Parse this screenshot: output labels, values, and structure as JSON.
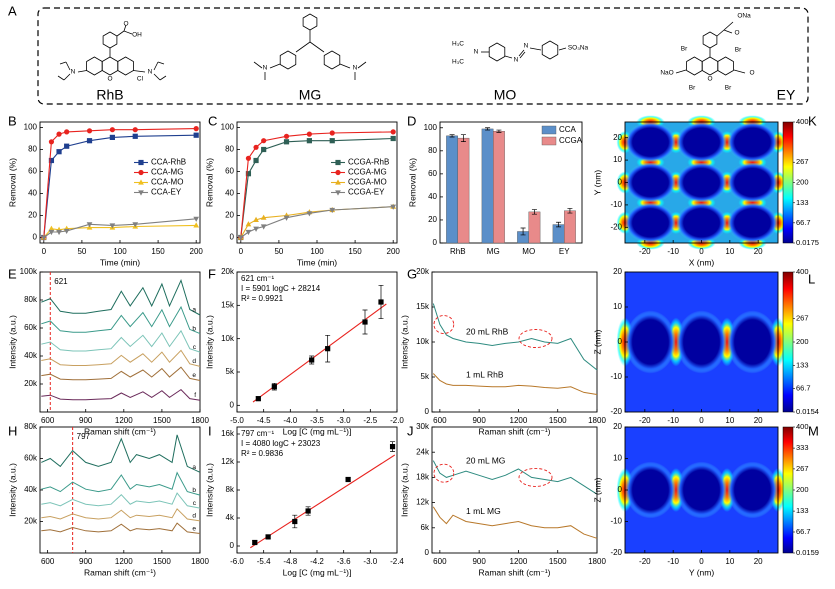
{
  "figure": {
    "panel": "A",
    "structures": [
      {
        "name": "RhB",
        "atoms": [
          "OH",
          "O",
          "N",
          "O",
          "Cl",
          "N"
        ]
      },
      {
        "name": "MG",
        "atoms": [
          "N",
          "N"
        ]
      },
      {
        "name": "MO",
        "atoms": [
          "H₃C",
          "N",
          "H₃C",
          "N",
          "N",
          "SO₃Na"
        ]
      },
      {
        "name": "EY",
        "atoms": [
          "ONa",
          "O",
          "Br",
          "Br",
          "NaO",
          "O",
          "Br",
          "O",
          "Br"
        ]
      }
    ]
  },
  "chart_data": [
    {
      "panel": "B",
      "type": "line",
      "xlabel": "Time (min)",
      "ylabel": "Removal (%)",
      "xlim": [
        -5,
        205
      ],
      "xticks": [
        0,
        50,
        100,
        150,
        200
      ],
      "ylim": [
        -5,
        105
      ],
      "yticks": [
        0,
        20,
        40,
        60,
        80,
        100
      ],
      "legend": "center right",
      "x": [
        0,
        10,
        20,
        30,
        60,
        90,
        120,
        200
      ],
      "series": [
        {
          "name": "CCA-RhB",
          "color": "#1f3f8f",
          "marker": "s",
          "values": [
            0,
            70,
            78,
            83,
            88,
            91,
            92,
            93
          ]
        },
        {
          "name": "CCA-MG",
          "color": "#e8231f",
          "marker": "o",
          "values": [
            0,
            87,
            94,
            96,
            97,
            98,
            98,
            99
          ]
        },
        {
          "name": "CCA-MO",
          "color": "#f0c020",
          "marker": "^",
          "values": [
            0,
            8,
            7,
            8,
            9,
            9,
            10,
            11
          ]
        },
        {
          "name": "CCA-EY",
          "color": "#808080",
          "marker": "v",
          "values": [
            0,
            5,
            5,
            6,
            12,
            11,
            12,
            17
          ]
        }
      ]
    },
    {
      "panel": "C",
      "type": "line",
      "xlabel": "Time (min)",
      "ylabel": "Removal (%)",
      "xlim": [
        -5,
        205
      ],
      "xticks": [
        0,
        50,
        100,
        150,
        200
      ],
      "ylim": [
        -5,
        105
      ],
      "yticks": [
        0,
        20,
        40,
        60,
        80,
        100
      ],
      "legend": "center right",
      "x": [
        0,
        10,
        20,
        30,
        60,
        90,
        120,
        200
      ],
      "series": [
        {
          "name": "CCGA-RhB",
          "color": "#2e5f55",
          "marker": "s",
          "values": [
            0,
            58,
            70,
            80,
            87,
            88,
            88,
            90
          ]
        },
        {
          "name": "CCGA-MG",
          "color": "#e8231f",
          "marker": "o",
          "values": [
            0,
            72,
            82,
            88,
            92,
            94,
            95,
            96
          ]
        },
        {
          "name": "CCGA-MO",
          "color": "#e8b020",
          "marker": "^",
          "values": [
            0,
            12,
            16,
            18,
            20,
            23,
            25,
            28
          ]
        },
        {
          "name": "CCGA-EY",
          "color": "#808080",
          "marker": "v",
          "values": [
            0,
            5,
            8,
            10,
            18,
            22,
            25,
            28
          ]
        }
      ]
    },
    {
      "panel": "D",
      "type": "bar",
      "ylabel": "Removal (%)",
      "ylim": [
        0,
        105
      ],
      "yticks": [
        0,
        20,
        40,
        60,
        80,
        100
      ],
      "legend": "upper right",
      "categories": [
        "RhB",
        "MG",
        "MO",
        "EY"
      ],
      "series": [
        {
          "name": "CCA",
          "color": "#5b8fc9",
          "values": [
            93,
            99,
            10,
            16
          ],
          "errors": [
            1,
            1,
            3,
            2
          ]
        },
        {
          "name": "CCGA",
          "color": "#e88a8a",
          "values": [
            91,
            97,
            27,
            28
          ],
          "errors": [
            3,
            1,
            2,
            2
          ]
        }
      ]
    },
    {
      "panel": "E",
      "type": "spectrum",
      "xlabel": "Raman shift (cm⁻¹)",
      "ylabel": "Intensity (a.u.)",
      "xlim": [
        540,
        1800
      ],
      "xticks": [
        600,
        900,
        1200,
        1500,
        1800
      ],
      "ylim": [
        0,
        100000
      ],
      "yticks": [
        {
          "value": 20000,
          "label": "20k"
        },
        {
          "value": 40000,
          "label": "40k"
        },
        {
          "value": 60000,
          "label": "60k"
        },
        {
          "value": 80000,
          "label": "80k"
        },
        {
          "value": 100000,
          "label": "100k"
        }
      ],
      "vline": 621,
      "x": [
        550,
        621,
        700,
        800,
        900,
        1000,
        1100,
        1180,
        1250,
        1350,
        1420,
        1500,
        1560,
        1650,
        1720,
        1800
      ],
      "series": [
        {
          "name": "a",
          "color": "#1f6e5e",
          "values": [
            78400,
            81000,
            71900,
            70600,
            70600,
            71900,
            73200,
            86200,
            75800,
            88800,
            75800,
            91400,
            75800,
            94000,
            73200,
            69300
          ]
        },
        {
          "name": "b",
          "color": "#3a9a8a",
          "values": [
            63000,
            65000,
            58000,
            57000,
            57000,
            58000,
            59000,
            69000,
            61000,
            71000,
            61000,
            73000,
            61000,
            75000,
            59000,
            56000
          ]
        },
        {
          "name": "c",
          "color": "#7cc4b8",
          "values": [
            48400,
            50000,
            44400,
            43600,
            43600,
            44400,
            45200,
            53200,
            46800,
            54800,
            46800,
            56400,
            46800,
            58000,
            45200,
            42800
          ]
        },
        {
          "name": "d",
          "color": "#c8a060",
          "values": [
            36800,
            38000,
            33800,
            33200,
            33200,
            33800,
            34400,
            40400,
            35600,
            41600,
            35600,
            42800,
            35600,
            44000,
            34400,
            32600
          ]
        },
        {
          "name": "e",
          "color": "#a0703a",
          "values": [
            26000,
            27000,
            23500,
            23000,
            23000,
            23500,
            24000,
            29000,
            25000,
            30000,
            25000,
            31000,
            25000,
            32000,
            24000,
            22500
          ]
        },
        {
          "name": "f",
          "color": "#6a2a5a",
          "values": [
            11200,
            12000,
            9200,
            8800,
            8800,
            9200,
            9600,
            13600,
            10400,
            14400,
            10400,
            15200,
            10400,
            16000,
            9600,
            8400
          ]
        }
      ]
    },
    {
      "panel": "F",
      "type": "scatter",
      "xlabel": "Log [C (mg mL⁻¹)]",
      "ylabel": "Intensity (a.u.)",
      "xlim": [
        -5,
        -2
      ],
      "xticks": [
        {
          "value": -5,
          "label": "-5.0"
        },
        {
          "value": -4.5,
          "label": "-4.5"
        },
        {
          "value": -4,
          "label": "-4.0"
        },
        {
          "value": -3.5,
          "label": "-3.5"
        },
        {
          "value": -3,
          "label": "-3.0"
        },
        {
          "value": -2.5,
          "label": "-2.5"
        },
        {
          "value": -2,
          "label": "-2.0"
        }
      ],
      "ylim": [
        -1000,
        20000
      ],
      "yticks": [
        0,
        {
          "value": 5000,
          "label": "5k"
        },
        {
          "value": 10000,
          "label": "10k"
        },
        {
          "value": 15000,
          "label": "15k"
        },
        {
          "value": 20000,
          "label": "20k"
        }
      ],
      "annotations": [
        "621 cm⁻¹",
        "I = 5901 logC + 28214",
        "R² = 0.9921"
      ],
      "x": [
        -4.6,
        -4.3,
        -3.6,
        -3.3,
        -2.6,
        -2.3
      ],
      "values": [
        1000,
        2800,
        6800,
        8500,
        12500,
        15500
      ],
      "errors": [
        300,
        500,
        600,
        2000,
        1800,
        2500
      ],
      "color": "#000000",
      "fit": {
        "color": "#e8231f",
        "x": [
          -4.7,
          -2.2
        ],
        "y": [
          500,
          15200
        ]
      }
    },
    {
      "panel": "G",
      "type": "spectrum",
      "xlabel": "Raman shift (cm⁻¹)",
      "ylabel": "Intensity (a.u.)",
      "xlim": [
        540,
        1800
      ],
      "xticks": [
        600,
        900,
        1200,
        1500,
        1800
      ],
      "ylim": [
        0,
        20000
      ],
      "yticks": [
        0,
        {
          "value": 5000,
          "label": "5k"
        },
        {
          "value": 10000,
          "label": "10k"
        },
        {
          "value": 15000,
          "label": "15k"
        },
        {
          "value": 20000,
          "label": "20k"
        }
      ],
      "x": [
        550,
        600,
        650,
        700,
        800,
        900,
        1000,
        1100,
        1200,
        1300,
        1400,
        1500,
        1600,
        1700,
        1800
      ],
      "series": [
        {
          "name": "20 mL RhB",
          "color": "#2e8b80",
          "values": [
            15500,
            12500,
            11000,
            10500,
            10000,
            9800,
            9500,
            9800,
            10000,
            10500,
            10000,
            9800,
            10500,
            7500,
            6000
          ]
        },
        {
          "name": "1 mL RhB",
          "color": "#b8782a",
          "values": [
            5500,
            4500,
            4000,
            3800,
            3800,
            3700,
            3600,
            3600,
            3800,
            3700,
            3500,
            3400,
            3600,
            2800,
            2500
          ]
        }
      ]
    },
    {
      "panel": "H",
      "type": "spectrum",
      "xlabel": "Raman shift (cm⁻¹)",
      "ylabel": "Intensity (a.u.)",
      "xlim": [
        540,
        1800
      ],
      "xticks": [
        600,
        900,
        1200,
        1500,
        1800
      ],
      "ylim": [
        0,
        80000
      ],
      "yticks": [
        {
          "value": 20000,
          "label": "20k"
        },
        {
          "value": 40000,
          "label": "40k"
        },
        {
          "value": 60000,
          "label": "60k"
        },
        {
          "value": 80000,
          "label": "80k"
        }
      ],
      "vline": 797,
      "x": [
        550,
        620,
        700,
        797,
        900,
        1000,
        1100,
        1180,
        1250,
        1300,
        1400,
        1480,
        1580,
        1620,
        1700,
        1800
      ],
      "series": [
        {
          "name": "a",
          "color": "#1f6e5e",
          "values": [
            57500,
            60000,
            55000,
            65000,
            57500,
            55000,
            57500,
            72500,
            57500,
            62500,
            60000,
            62500,
            57500,
            75000,
            55000,
            51250
          ]
        },
        {
          "name": "b",
          "color": "#3a9a8a",
          "values": [
            40500,
            42000,
            39000,
            45000,
            40500,
            39000,
            40500,
            49500,
            40500,
            43500,
            42000,
            43500,
            40500,
            51000,
            39000,
            36750
          ]
        },
        {
          "name": "c",
          "color": "#7cc4b8",
          "values": [
            31000,
            32000,
            30000,
            34000,
            31000,
            30000,
            31000,
            37000,
            31000,
            33000,
            32000,
            33000,
            31000,
            38000,
            30000,
            28500
          ]
        },
        {
          "name": "d",
          "color": "#c8a060",
          "values": [
            22400,
            23200,
            21600,
            24800,
            22400,
            21600,
            22400,
            27200,
            22400,
            24000,
            23200,
            24000,
            22400,
            28000,
            21600,
            20400
          ]
        },
        {
          "name": "e",
          "color": "#a0703a",
          "values": [
            14100,
            14800,
            13400,
            16200,
            14100,
            13400,
            14100,
            18300,
            14100,
            15500,
            14800,
            15500,
            14100,
            19000,
            13400,
            12350
          ]
        }
      ]
    },
    {
      "panel": "I",
      "type": "scatter",
      "xlabel": "Log [C (mg mL⁻¹)]",
      "ylabel": "Intensity (a.u.)",
      "xlim": [
        -6,
        -2.4
      ],
      "xticks": [
        {
          "value": -6,
          "label": "-6.0"
        },
        {
          "value": -5.4,
          "label": "-5.4"
        },
        {
          "value": -4.8,
          "label": "-4.8"
        },
        {
          "value": -4.2,
          "label": "-4.2"
        },
        {
          "value": -3.6,
          "label": "-3.6"
        },
        {
          "value": -3,
          "label": "-3.0"
        },
        {
          "value": -2.4,
          "label": "-2.4"
        }
      ],
      "ylim": [
        -1000,
        17000
      ],
      "yticks": [
        0,
        {
          "value": 4000,
          "label": "4k"
        },
        {
          "value": 8000,
          "label": "8k"
        },
        {
          "value": 12000,
          "label": "12k"
        },
        {
          "value": 16000,
          "label": "16k"
        }
      ],
      "annotations": [
        "797 cm⁻¹",
        "I = 4080 logC + 23023",
        "R² = 0.9836"
      ],
      "x": [
        -5.6,
        -5.3,
        -4.7,
        -4.4,
        -3.5,
        -2.5
      ],
      "values": [
        500,
        1300,
        3500,
        5000,
        9500,
        14200
      ],
      "errors": [
        300,
        200,
        900,
        600,
        300,
        700
      ],
      "color": "#000000",
      "fit": {
        "color": "#e8231f",
        "x": [
          -5.7,
          -2.45
        ],
        "y": [
          -250,
          13000
        ]
      }
    },
    {
      "panel": "J",
      "type": "spectrum",
      "xlabel": "Raman shift (cm⁻¹)",
      "ylabel": "Intensity (a.u.)",
      "xlim": [
        540,
        1800
      ],
      "xticks": [
        600,
        900,
        1200,
        1500,
        1800
      ],
      "ylim": [
        0,
        30000
      ],
      "yticks": [
        0,
        {
          "value": 6000,
          "label": "6k"
        },
        {
          "value": 12000,
          "label": "12k"
        },
        {
          "value": 18000,
          "label": "18k"
        },
        {
          "value": 24000,
          "label": "24k"
        },
        {
          "value": 30000,
          "label": "30k"
        }
      ],
      "x": [
        550,
        600,
        650,
        700,
        800,
        900,
        1000,
        1100,
        1200,
        1300,
        1400,
        1500,
        1600,
        1700,
        1800
      ],
      "series": [
        {
          "name": "20 mL MG",
          "color": "#2e8b80",
          "values": [
            22000,
            19000,
            18000,
            18500,
            19500,
            18500,
            17500,
            18500,
            20000,
            18000,
            17500,
            17000,
            18000,
            16000,
            14000
          ]
        },
        {
          "name": "1 mL MG",
          "color": "#b8782a",
          "values": [
            11000,
            8500,
            7000,
            9000,
            7500,
            7000,
            6500,
            7000,
            7500,
            6500,
            6000,
            6000,
            6500,
            4500,
            3500
          ]
        }
      ]
    },
    {
      "panel": "K",
      "type": "heatmap",
      "xlabel": "X (nm)",
      "ylabel": "Y (nm)",
      "xlim": [
        -27,
        27
      ],
      "xticks": [
        -20,
        -10,
        0,
        10,
        20
      ],
      "ylim": [
        -27,
        27
      ],
      "yticks": [
        -20,
        -10,
        0,
        10,
        20
      ],
      "clim": [
        0.0175,
        400
      ],
      "cticks": [
        400,
        267,
        200,
        133,
        66.7,
        0.0175
      ]
    },
    {
      "panel": "L",
      "type": "heatmap",
      "xlabel": "X (nm)",
      "ylabel": "Z (nm)",
      "xlim": [
        -27,
        27
      ],
      "xticks": [
        -20,
        -10,
        0,
        10,
        20
      ],
      "ylim": [
        -20,
        20
      ],
      "yticks": [
        -20,
        -10,
        0,
        10,
        20
      ],
      "clim": [
        0.0154,
        400
      ],
      "cticks": [
        400,
        267,
        200,
        133,
        66.7,
        0.0154
      ]
    },
    {
      "panel": "M",
      "type": "heatmap",
      "xlabel": "Y (nm)",
      "ylabel": "Z (nm)",
      "xlim": [
        -27,
        27
      ],
      "xticks": [
        -20,
        -10,
        0,
        10,
        20
      ],
      "ylim": [
        -20,
        20
      ],
      "yticks": [
        -20,
        -10,
        0,
        10,
        20
      ],
      "clim": [
        0.0159,
        400
      ],
      "cticks": [
        400,
        333,
        267,
        200,
        133,
        66.7,
        0.0159
      ]
    }
  ]
}
